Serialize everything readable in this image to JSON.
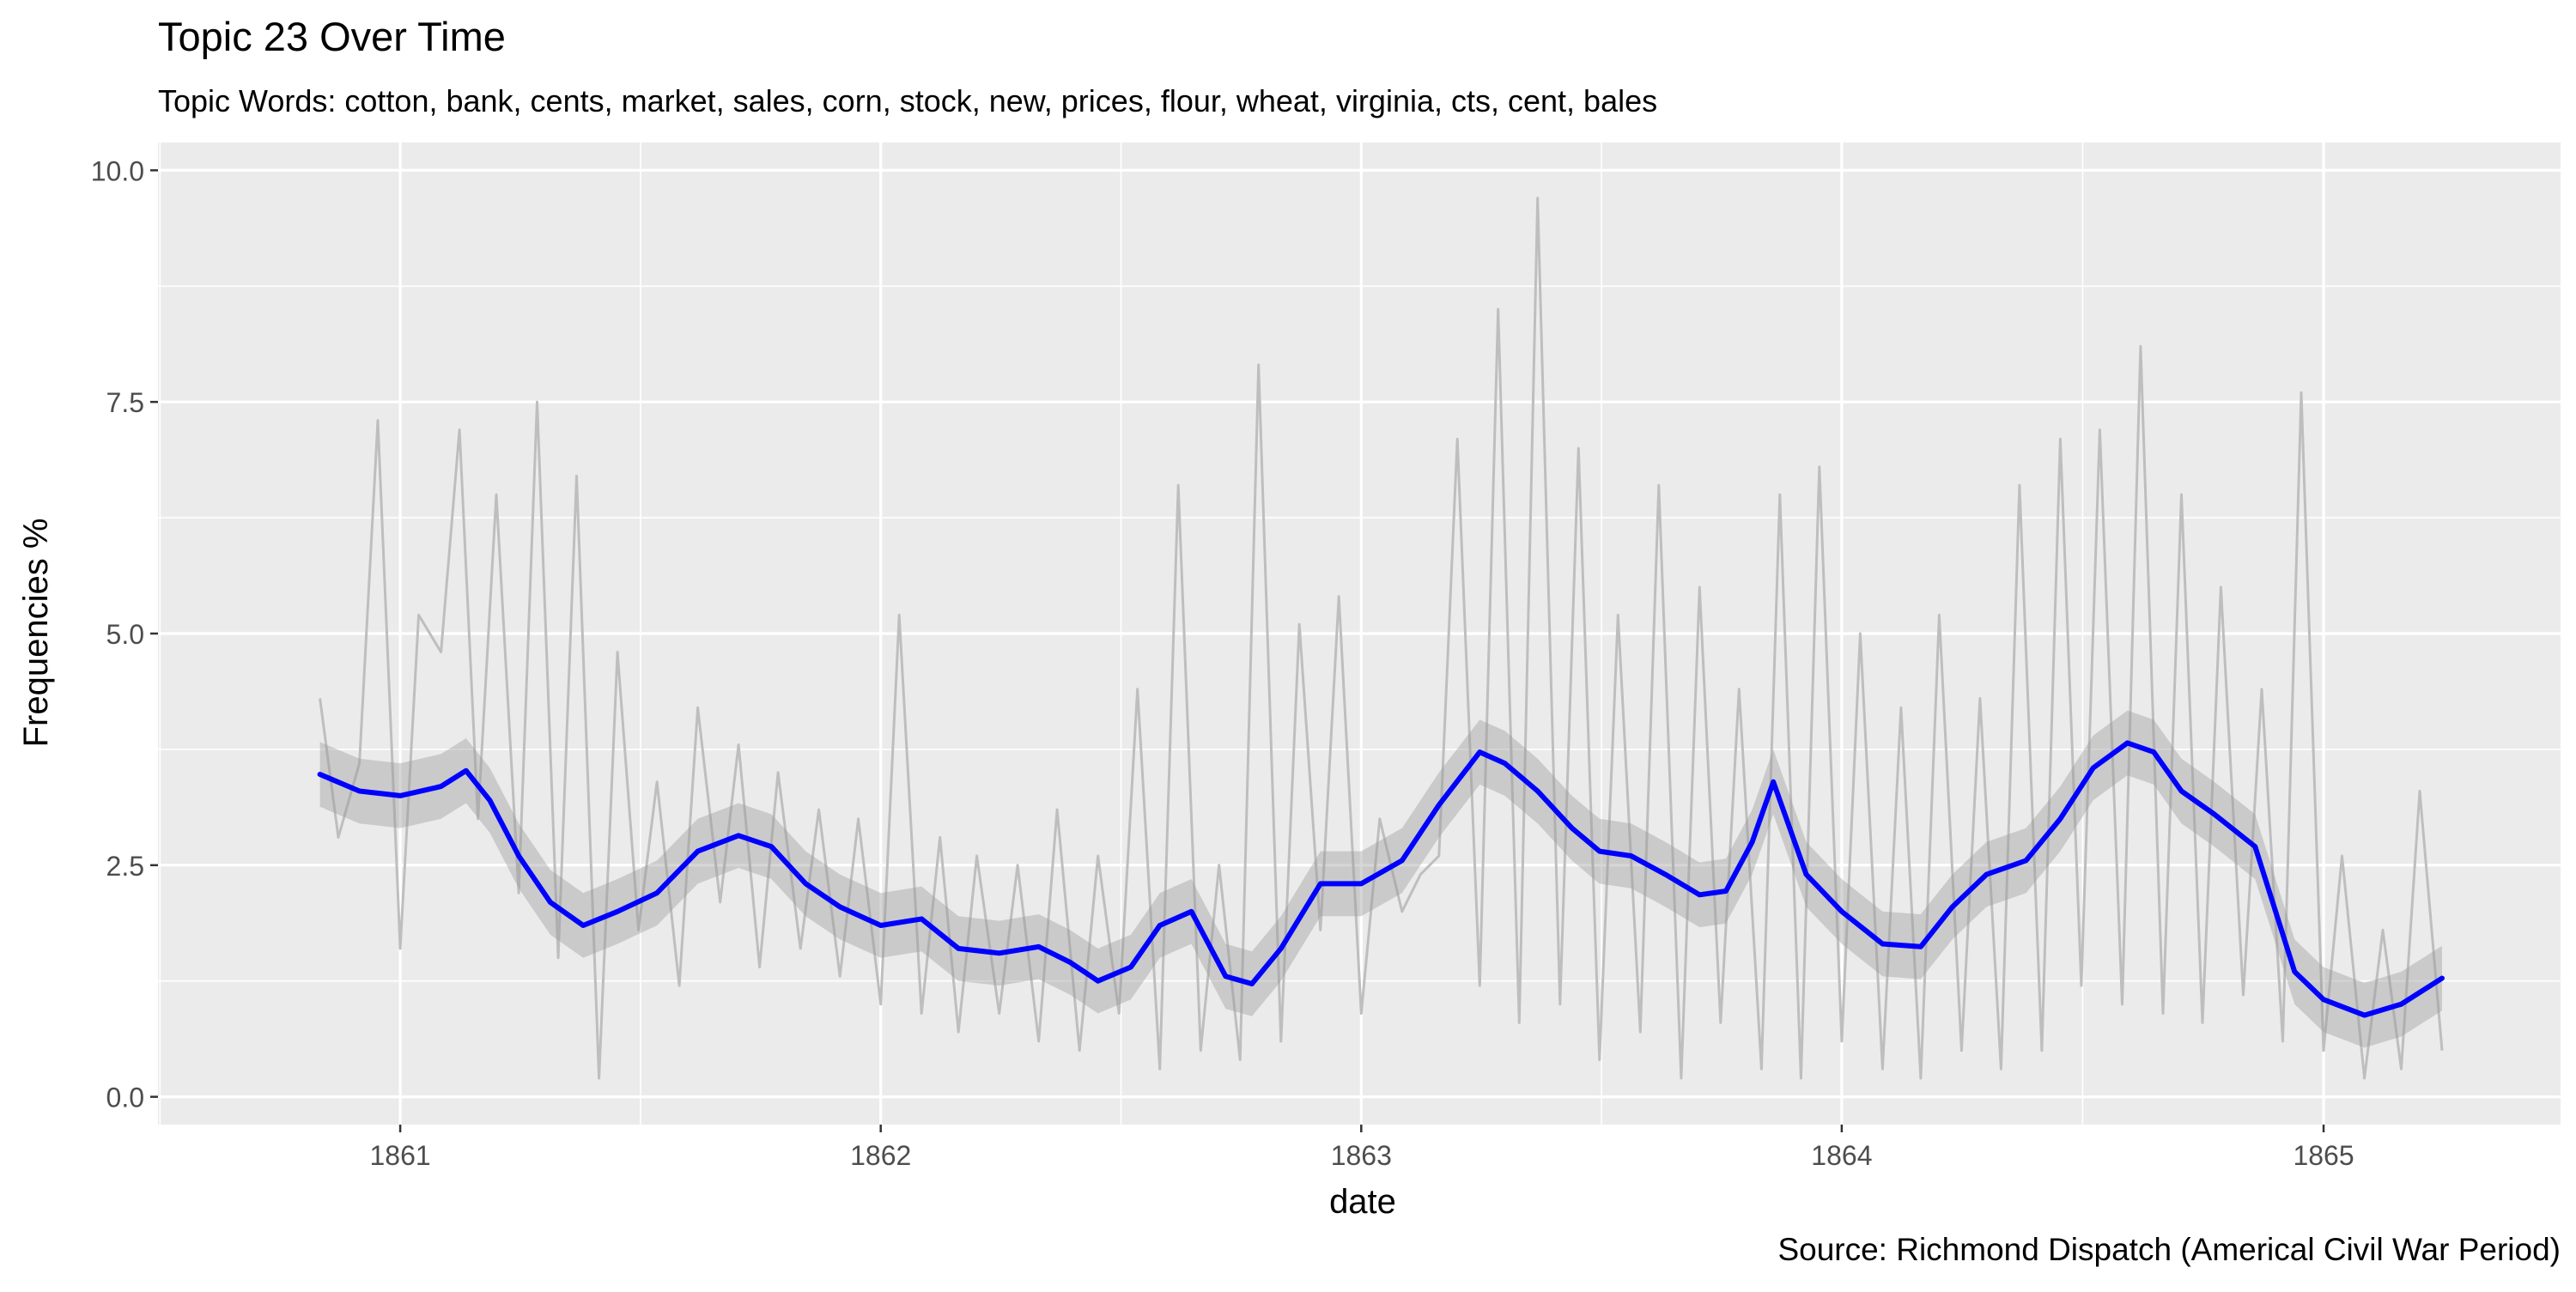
{
  "chart_data": {
    "type": "line",
    "title": "Topic 23 Over Time",
    "subtitle": "Topic Words: cotton, bank, cents, market, sales, corn, stock, new, prices, flour, wheat, virginia, cts, cent, bales",
    "xlabel": "date",
    "ylabel": "Frequencies %",
    "caption": "Source: Richmond Dispatch (Americal Civil War Period)",
    "xlim": [
      "1860-07-01",
      "1865-06-30"
    ],
    "ylim": [
      -0.3,
      10.3
    ],
    "x_ticks": [
      "1861-01-01",
      "1862-01-01",
      "1863-01-01",
      "1864-01-01",
      "1865-01-01"
    ],
    "x_tick_labels": [
      "1861",
      "1862",
      "1863",
      "1864",
      "1865"
    ],
    "y_ticks": [
      0,
      2.5,
      5,
      7.5,
      10
    ],
    "y_tick_labels": [
      "0.0",
      "2.5",
      "5.0",
      "7.5",
      "10.0"
    ],
    "grid": true,
    "colors": {
      "panel": "#EBEBEB",
      "grid": "#FFFFFF",
      "raw": "#BEBEBE",
      "band": "#999999",
      "smooth": "#0000FF",
      "text": "#000000",
      "tick": "#4D4D4D"
    },
    "series": [
      {
        "role": "raw",
        "note": "Daily frequency series (light gray), approximated from the plot",
        "x": [
          "1860-11-01",
          "1860-11-15",
          "1860-12-01",
          "1860-12-15",
          "1861-01-01",
          "1861-01-15",
          "1861-02-01",
          "1861-02-15",
          "1861-03-01",
          "1861-03-15",
          "1861-04-01",
          "1861-04-15",
          "1861-05-01",
          "1861-05-15",
          "1861-06-01",
          "1861-06-15",
          "1861-07-01",
          "1861-07-15",
          "1861-08-01",
          "1861-08-15",
          "1861-09-01",
          "1861-09-15",
          "1861-10-01",
          "1861-10-15",
          "1861-11-01",
          "1861-11-15",
          "1861-12-01",
          "1861-12-15",
          "1862-01-01",
          "1862-01-15",
          "1862-02-01",
          "1862-02-15",
          "1862-03-01",
          "1862-03-15",
          "1862-04-01",
          "1862-04-15",
          "1862-05-01",
          "1862-05-15",
          "1862-06-01",
          "1862-06-15",
          "1862-07-01",
          "1862-07-15",
          "1862-08-01",
          "1862-08-15",
          "1862-09-01",
          "1862-09-15",
          "1862-10-01",
          "1862-10-15",
          "1862-11-01",
          "1862-11-15",
          "1862-12-01",
          "1862-12-15",
          "1863-01-01",
          "1863-01-15",
          "1863-02-01",
          "1863-02-15",
          "1863-03-01",
          "1863-03-15",
          "1863-04-01",
          "1863-04-15",
          "1863-05-01",
          "1863-05-15",
          "1863-06-01",
          "1863-06-15",
          "1863-07-01",
          "1863-07-15",
          "1863-08-01",
          "1863-08-15",
          "1863-09-01",
          "1863-09-15",
          "1863-10-01",
          "1863-10-15",
          "1863-11-01",
          "1863-11-15",
          "1863-12-01",
          "1863-12-15",
          "1864-01-01",
          "1864-01-15",
          "1864-02-01",
          "1864-02-15",
          "1864-03-01",
          "1864-03-15",
          "1864-04-01",
          "1864-04-15",
          "1864-05-01",
          "1864-05-15",
          "1864-06-01",
          "1864-06-15",
          "1864-07-01",
          "1864-07-15",
          "1864-08-01",
          "1864-08-15",
          "1864-09-01",
          "1864-09-15",
          "1864-10-01",
          "1864-10-15",
          "1864-11-01",
          "1864-11-15",
          "1864-12-01",
          "1864-12-15",
          "1865-01-01",
          "1865-01-15",
          "1865-02-01",
          "1865-02-15",
          "1865-03-01",
          "1865-03-15",
          "1865-04-01"
        ],
        "y": [
          4.3,
          2.8,
          3.6,
          7.3,
          1.6,
          5.2,
          4.8,
          7.2,
          3.0,
          6.5,
          2.2,
          7.5,
          1.5,
          6.7,
          0.2,
          4.8,
          1.8,
          3.4,
          1.2,
          4.2,
          2.1,
          3.8,
          1.4,
          3.5,
          1.6,
          3.1,
          1.3,
          3.0,
          1.0,
          5.2,
          0.9,
          2.8,
          0.7,
          2.6,
          0.9,
          2.5,
          0.6,
          3.1,
          0.5,
          2.6,
          0.9,
          4.4,
          0.3,
          6.6,
          0.5,
          2.5,
          0.4,
          7.9,
          0.6,
          5.1,
          1.8,
          5.4,
          0.9,
          3.0,
          2.0,
          2.4,
          2.6,
          7.1,
          1.2,
          8.5,
          0.8,
          9.7,
          1.0,
          7.0,
          0.4,
          5.2,
          0.7,
          6.6,
          0.2,
          5.5,
          0.8,
          4.4,
          0.3,
          6.5,
          0.2,
          6.8,
          0.6,
          5.0,
          0.3,
          4.2,
          0.2,
          5.2,
          0.5,
          4.3,
          0.3,
          6.6,
          0.5,
          7.1,
          1.2,
          7.2,
          1.0,
          8.1,
          0.9,
          6.5,
          0.8,
          5.5,
          1.1,
          4.4,
          0.6,
          7.6,
          0.5,
          2.6,
          0.2,
          1.8,
          0.3,
          3.3,
          0.5
        ]
      },
      {
        "role": "smooth",
        "note": "Smoothed trend (blue) with confidence band (dark gray)",
        "x": [
          "1860-11-01",
          "1860-12-01",
          "1861-01-01",
          "1861-02-01",
          "1861-02-20",
          "1861-03-10",
          "1861-04-01",
          "1861-04-25",
          "1861-05-20",
          "1861-06-15",
          "1861-07-15",
          "1861-08-15",
          "1861-09-15",
          "1861-10-10",
          "1861-11-05",
          "1861-12-01",
          "1862-01-01",
          "1862-02-01",
          "1862-03-01",
          "1862-04-01",
          "1862-05-01",
          "1862-05-25",
          "1862-06-15",
          "1862-07-10",
          "1862-08-01",
          "1862-08-25",
          "1862-09-20",
          "1862-10-10",
          "1862-11-01",
          "1862-12-01",
          "1863-01-01",
          "1863-02-01",
          "1863-03-01",
          "1863-04-01",
          "1863-04-20",
          "1863-05-15",
          "1863-06-10",
          "1863-07-01",
          "1863-07-25",
          "1863-08-20",
          "1863-09-15",
          "1863-10-05",
          "1863-10-25",
          "1863-11-10",
          "1863-12-05",
          "1864-01-01",
          "1864-02-01",
          "1864-03-01",
          "1864-03-25",
          "1864-04-20",
          "1864-05-20",
          "1864-06-15",
          "1864-07-10",
          "1864-08-05",
          "1864-08-25",
          "1864-09-15",
          "1864-10-10",
          "1864-11-10",
          "1864-12-10",
          "1865-01-01",
          "1865-02-01",
          "1865-03-01",
          "1865-04-01"
        ],
        "y": [
          3.48,
          3.3,
          3.25,
          3.35,
          3.52,
          3.2,
          2.6,
          2.1,
          1.85,
          2.0,
          2.2,
          2.65,
          2.82,
          2.7,
          2.3,
          2.05,
          1.85,
          1.92,
          1.6,
          1.55,
          1.62,
          1.45,
          1.25,
          1.4,
          1.85,
          2.0,
          1.3,
          1.22,
          1.6,
          2.3,
          2.3,
          2.55,
          3.15,
          3.72,
          3.6,
          3.3,
          2.9,
          2.65,
          2.6,
          2.4,
          2.18,
          2.22,
          2.75,
          3.4,
          2.4,
          2.0,
          1.65,
          1.62,
          2.05,
          2.4,
          2.55,
          3.0,
          3.55,
          3.82,
          3.72,
          3.3,
          3.05,
          2.7,
          1.35,
          1.05,
          0.88,
          1.0,
          1.28
        ],
        "band": 0.35
      }
    ]
  }
}
